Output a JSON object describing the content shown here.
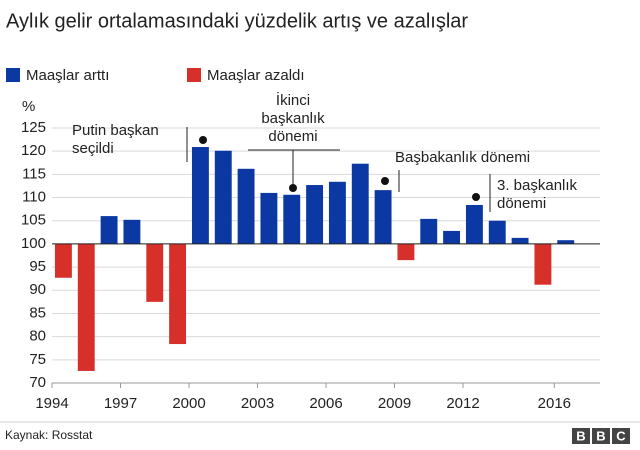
{
  "chart_data": {
    "type": "bar",
    "title": "Aylık gelir ortalamasındaki yüzdelik artış ve azalışlar",
    "y_label": "%",
    "x": [
      1994,
      1995,
      1996,
      1997,
      1998,
      1999,
      2000,
      2001,
      2002,
      2003,
      2004,
      2005,
      2006,
      2007,
      2008,
      2009,
      2010,
      2011,
      2012,
      2013,
      2014,
      2015,
      2016
    ],
    "series": [
      {
        "name": "Maaşlar arttı",
        "color": "#0c38a3",
        "values": [
          null,
          null,
          106.0,
          105.2,
          null,
          null,
          120.9,
          120.1,
          116.2,
          111.0,
          110.6,
          112.7,
          113.4,
          117.3,
          111.6,
          null,
          105.4,
          102.8,
          108.4,
          105.0,
          101.3,
          null,
          100.8
        ]
      },
      {
        "name": "Maaşlar azaldı",
        "color": "#d7302a",
        "values": [
          92.7,
          72.6,
          null,
          null,
          87.5,
          78.4,
          null,
          null,
          null,
          null,
          null,
          null,
          null,
          null,
          null,
          96.5,
          null,
          null,
          null,
          null,
          null,
          91.2,
          null
        ]
      }
    ],
    "baseline": 100,
    "xlim": [
      1994,
      2018
    ],
    "xticks": [
      1994,
      1997,
      2000,
      2003,
      2006,
      2009,
      2012,
      2016
    ],
    "ylim": [
      70,
      125
    ],
    "yticks": [
      70,
      75,
      80,
      85,
      90,
      95,
      100,
      105,
      110,
      115,
      120,
      125
    ],
    "grid": true,
    "annotations": [
      {
        "lines": [
          "Putin başkan",
          "seçildi"
        ]
      },
      {
        "lines": [
          "İkinci",
          "başkanlık",
          "dönemi"
        ]
      },
      {
        "lines": [
          "Başbakanlık dönemi"
        ]
      },
      {
        "lines": [
          "3. başkanlık",
          "dönemi"
        ]
      }
    ],
    "source": "Kaynak: Rosstat"
  },
  "logo": "BBC"
}
